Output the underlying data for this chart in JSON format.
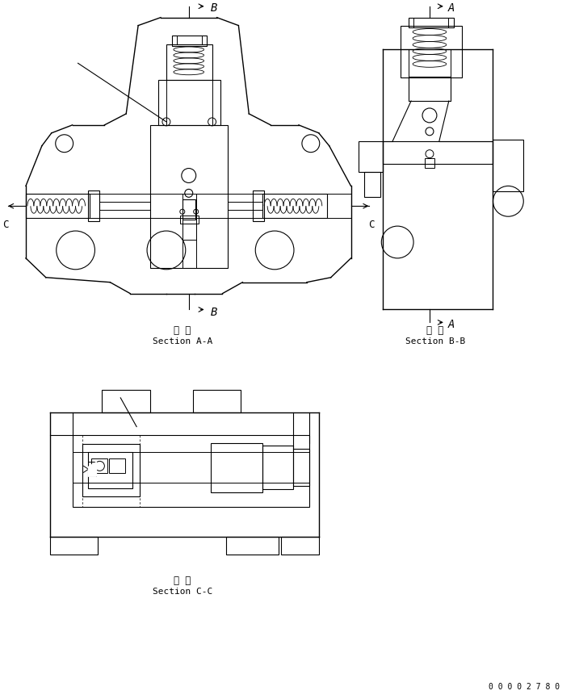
{
  "bg_color": "#ffffff",
  "line_color": "#000000",
  "figure_size": [
    7.17,
    8.66
  ],
  "dpi": 100,
  "section_aa_label_line1": "断 面",
  "section_aa_label_line2": "Section A-A",
  "section_bb_label_line1": "断 面",
  "section_bb_label_line2": "Section B-B",
  "section_cc_label_line1": "断 面",
  "section_cc_label_line2": "Section C-C",
  "part_number": "0 0 0 0 2 7 8 0",
  "label_A_top": "A",
  "label_B_top": "B",
  "label_C_left": "C",
  "label_C_right": "C",
  "label_B_bottom": "B",
  "label_A_bottom": "A"
}
